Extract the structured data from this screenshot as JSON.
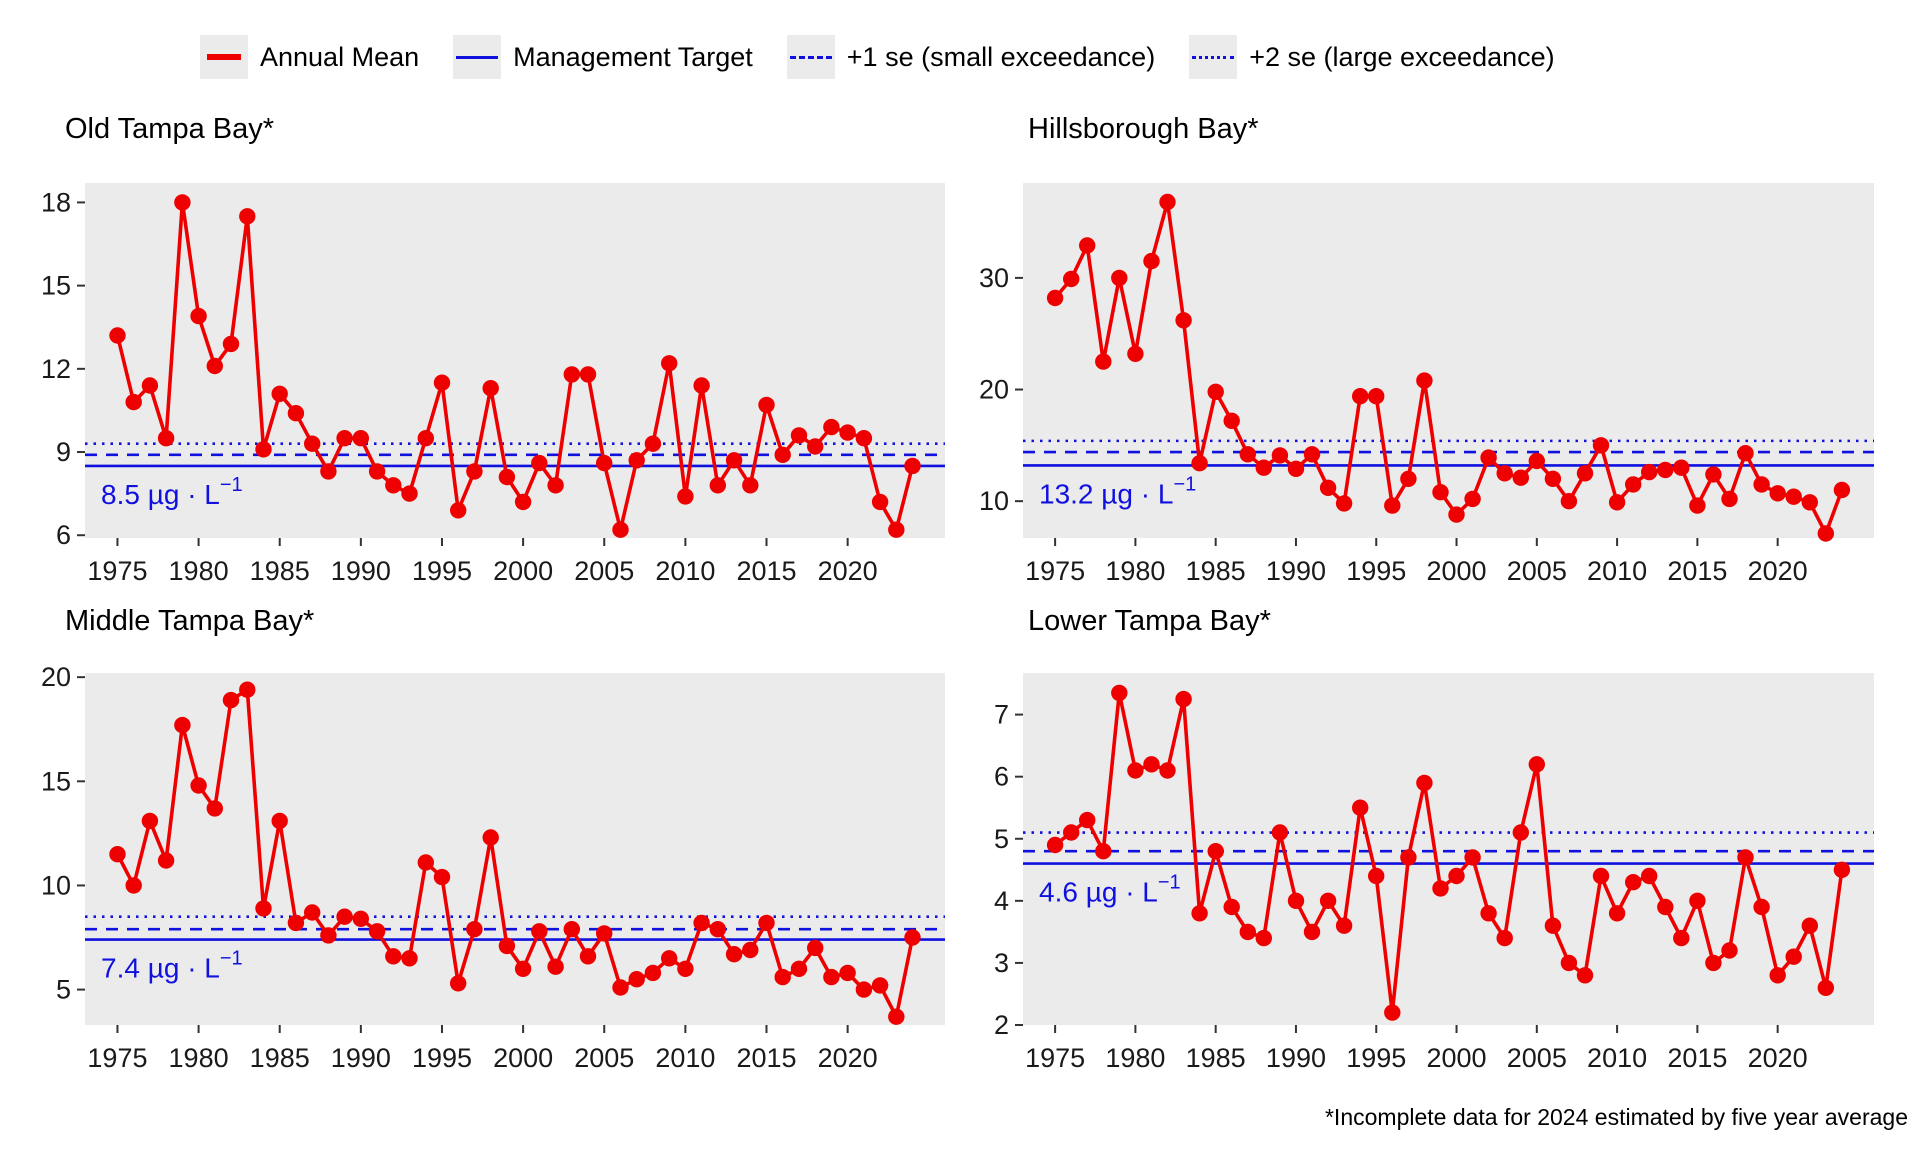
{
  "legend": {
    "items": [
      {
        "label": "Annual Mean",
        "style": "solid-red",
        "color": "#EE0000"
      },
      {
        "label": "Management Target",
        "style": "solid-blue",
        "color": "#1010DF"
      },
      {
        "label": "+1 se (small exceedance)",
        "style": "dashed-blue",
        "color": "#1010DF"
      },
      {
        "label": "+2 se (large exceedance)",
        "style": "dotted-blue",
        "color": "#1010DF"
      }
    ]
  },
  "footnote": "*Incomplete data for 2024 estimated by five year average",
  "colors": {
    "series_red": "#EE0000",
    "line_blue": "#1010DF",
    "panel_bg": "#EBEBEB",
    "tick_text": "#1A1A1A"
  },
  "chart_data": [
    {
      "type": "line",
      "title": "Old Tampa Bay*",
      "years": [
        1975,
        1976,
        1977,
        1978,
        1979,
        1980,
        1981,
        1982,
        1983,
        1984,
        1985,
        1986,
        1987,
        1988,
        1989,
        1990,
        1991,
        1992,
        1993,
        1994,
        1995,
        1996,
        1997,
        1998,
        1999,
        2000,
        2001,
        2002,
        2003,
        2004,
        2005,
        2006,
        2007,
        2008,
        2009,
        2010,
        2011,
        2012,
        2013,
        2014,
        2015,
        2016,
        2017,
        2018,
        2019,
        2020,
        2021,
        2022,
        2023,
        2024
      ],
      "values": [
        13.2,
        10.8,
        11.4,
        9.5,
        18.0,
        13.9,
        12.1,
        12.9,
        17.5,
        9.1,
        11.1,
        10.4,
        9.3,
        8.3,
        9.5,
        9.5,
        8.3,
        7.8,
        7.5,
        9.5,
        11.5,
        6.9,
        8.3,
        11.3,
        8.1,
        7.2,
        8.6,
        7.8,
        11.8,
        11.8,
        8.6,
        6.2,
        8.7,
        9.3,
        12.2,
        7.4,
        11.4,
        7.8,
        8.7,
        7.8,
        10.7,
        8.9,
        9.6,
        9.2,
        9.9,
        9.7,
        9.5,
        7.2,
        6.2,
        8.5
      ],
      "management_target": 8.5,
      "plus_1se": 8.9,
      "plus_2se": 9.3,
      "target_label": {
        "value": "8.5",
        "unit": " µg · L",
        "exponent": "−1"
      },
      "yticks": [
        6,
        9,
        12,
        15,
        18
      ],
      "ylim": [
        5.9,
        18.7
      ],
      "xticks": [
        1975,
        1980,
        1985,
        1990,
        1995,
        2000,
        2005,
        2010,
        2015,
        2020
      ],
      "xlim": [
        1973,
        2026
      ],
      "grid": false,
      "legend_position": "top"
    },
    {
      "type": "line",
      "title": "Hillsborough Bay*",
      "years": [
        1975,
        1976,
        1977,
        1978,
        1979,
        1980,
        1981,
        1982,
        1983,
        1984,
        1985,
        1986,
        1987,
        1988,
        1989,
        1990,
        1991,
        1992,
        1993,
        1994,
        1995,
        1996,
        1997,
        1998,
        1999,
        2000,
        2001,
        2002,
        2003,
        2004,
        2005,
        2006,
        2007,
        2008,
        2009,
        2010,
        2011,
        2012,
        2013,
        2014,
        2015,
        2016,
        2017,
        2018,
        2019,
        2020,
        2021,
        2022,
        2023,
        2024
      ],
      "values": [
        28.2,
        29.9,
        32.9,
        22.5,
        30.0,
        23.2,
        31.5,
        36.8,
        26.2,
        13.4,
        19.8,
        17.2,
        14.2,
        13.0,
        14.1,
        12.9,
        14.2,
        11.2,
        9.8,
        19.4,
        19.4,
        9.6,
        12.0,
        20.8,
        10.8,
        8.8,
        10.2,
        13.9,
        12.5,
        12.1,
        13.6,
        12.0,
        10.0,
        12.5,
        15.0,
        9.9,
        11.5,
        12.6,
        12.8,
        13.0,
        9.6,
        12.4,
        10.2,
        14.3,
        11.5,
        10.7,
        10.4,
        9.9,
        7.1,
        11.0
      ],
      "management_target": 13.2,
      "plus_1se": 14.4,
      "plus_2se": 15.4,
      "target_label": {
        "value": "13.2",
        "unit": " µg · L",
        "exponent": "−1"
      },
      "yticks": [
        10,
        20,
        30
      ],
      "ylim": [
        6.7,
        38.5
      ],
      "xticks": [
        1975,
        1980,
        1985,
        1990,
        1995,
        2000,
        2005,
        2010,
        2015,
        2020
      ],
      "xlim": [
        1973,
        2026
      ],
      "grid": false,
      "legend_position": "top"
    },
    {
      "type": "line",
      "title": "Middle Tampa Bay*",
      "years": [
        1975,
        1976,
        1977,
        1978,
        1979,
        1980,
        1981,
        1982,
        1983,
        1984,
        1985,
        1986,
        1987,
        1988,
        1989,
        1990,
        1991,
        1992,
        1993,
        1994,
        1995,
        1996,
        1997,
        1998,
        1999,
        2000,
        2001,
        2002,
        2003,
        2004,
        2005,
        2006,
        2007,
        2008,
        2009,
        2010,
        2011,
        2012,
        2013,
        2014,
        2015,
        2016,
        2017,
        2018,
        2019,
        2020,
        2021,
        2022,
        2023,
        2024
      ],
      "values": [
        11.5,
        10.0,
        13.1,
        11.2,
        17.7,
        14.8,
        13.7,
        18.9,
        19.4,
        8.9,
        13.1,
        8.2,
        8.7,
        7.6,
        8.5,
        8.4,
        7.8,
        6.6,
        6.5,
        11.1,
        10.4,
        5.3,
        7.9,
        12.3,
        7.1,
        6.0,
        7.8,
        6.1,
        7.9,
        6.6,
        7.7,
        5.1,
        5.5,
        5.8,
        6.5,
        6.0,
        8.2,
        7.9,
        6.7,
        6.9,
        8.2,
        5.6,
        6.0,
        7.0,
        5.6,
        5.8,
        5.0,
        5.2,
        3.7,
        7.5
      ],
      "management_target": 7.4,
      "plus_1se": 7.9,
      "plus_2se": 8.5,
      "target_label": {
        "value": "7.4",
        "unit": " µg · L",
        "exponent": "−1"
      },
      "yticks": [
        5,
        10,
        15,
        20
      ],
      "ylim": [
        3.3,
        20.2
      ],
      "xticks": [
        1975,
        1980,
        1985,
        1990,
        1995,
        2000,
        2005,
        2010,
        2015,
        2020
      ],
      "xlim": [
        1973,
        2026
      ],
      "grid": false,
      "legend_position": "top"
    },
    {
      "type": "line",
      "title": "Lower Tampa Bay*",
      "years": [
        1975,
        1976,
        1977,
        1978,
        1979,
        1980,
        1981,
        1982,
        1983,
        1984,
        1985,
        1986,
        1987,
        1988,
        1989,
        1990,
        1991,
        1992,
        1993,
        1994,
        1995,
        1996,
        1997,
        1998,
        1999,
        2000,
        2001,
        2002,
        2003,
        2004,
        2005,
        2006,
        2007,
        2008,
        2009,
        2010,
        2011,
        2012,
        2013,
        2014,
        2015,
        2016,
        2017,
        2018,
        2019,
        2020,
        2021,
        2022,
        2023,
        2024
      ],
      "values": [
        4.9,
        5.1,
        5.3,
        4.8,
        7.35,
        6.1,
        6.2,
        6.1,
        7.25,
        3.8,
        4.8,
        3.9,
        3.5,
        3.4,
        5.1,
        4.0,
        3.5,
        4.0,
        3.6,
        5.5,
        4.4,
        2.2,
        4.7,
        5.9,
        4.2,
        4.4,
        4.7,
        3.8,
        3.4,
        5.1,
        6.2,
        3.6,
        3.0,
        2.8,
        4.4,
        3.8,
        4.3,
        4.4,
        3.9,
        3.4,
        4.0,
        3.0,
        3.2,
        4.7,
        3.9,
        2.8,
        3.1,
        3.6,
        2.6,
        4.5
      ],
      "management_target": 4.6,
      "plus_1se": 4.8,
      "plus_2se": 5.1,
      "target_label": {
        "value": "4.6",
        "unit": " µg · L",
        "exponent": "−1"
      },
      "yticks": [
        2,
        3,
        4,
        5,
        6,
        7
      ],
      "ylim": [
        2.0,
        7.67
      ],
      "xticks": [
        1975,
        1980,
        1985,
        1990,
        1995,
        2000,
        2005,
        2010,
        2015,
        2020
      ],
      "xlim": [
        1973,
        2026
      ],
      "grid": false,
      "legend_position": "top"
    }
  ]
}
